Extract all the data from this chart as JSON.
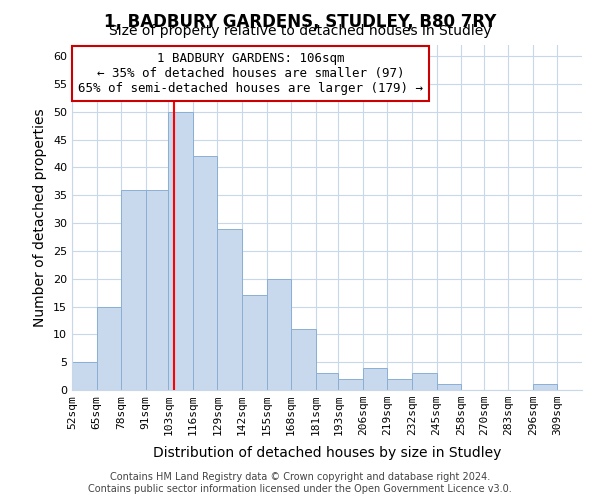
{
  "title": "1, BADBURY GARDENS, STUDLEY, B80 7RY",
  "subtitle": "Size of property relative to detached houses in Studley",
  "xlabel": "Distribution of detached houses by size in Studley",
  "ylabel": "Number of detached properties",
  "bin_labels": [
    "52sqm",
    "65sqm",
    "78sqm",
    "91sqm",
    "103sqm",
    "116sqm",
    "129sqm",
    "142sqm",
    "155sqm",
    "168sqm",
    "181sqm",
    "193sqm",
    "206sqm",
    "219sqm",
    "232sqm",
    "245sqm",
    "258sqm",
    "270sqm",
    "283sqm",
    "296sqm",
    "309sqm"
  ],
  "bar_heights": [
    5,
    15,
    36,
    36,
    50,
    42,
    29,
    17,
    20,
    11,
    3,
    2,
    4,
    2,
    3,
    1,
    0,
    0,
    0,
    1,
    0
  ],
  "bar_color": "#c9d9ed",
  "bar_edge_color": "#8bafd4",
  "red_line_x": 106,
  "bin_edges": [
    52,
    65,
    78,
    91,
    103,
    116,
    129,
    142,
    155,
    168,
    181,
    193,
    206,
    219,
    232,
    245,
    258,
    270,
    283,
    296,
    309,
    322
  ],
  "annotation_title": "1 BADBURY GARDENS: 106sqm",
  "annotation_line1": "← 35% of detached houses are smaller (97)",
  "annotation_line2": "65% of semi-detached houses are larger (179) →",
  "annotation_box_color": "#ffffff",
  "annotation_box_edge": "#cc0000",
  "footer1": "Contains HM Land Registry data © Crown copyright and database right 2024.",
  "footer2": "Contains public sector information licensed under the Open Government Licence v3.0.",
  "ylim": [
    0,
    62
  ],
  "yticks": [
    0,
    5,
    10,
    15,
    20,
    25,
    30,
    35,
    40,
    45,
    50,
    55,
    60
  ],
  "bg_color": "#ffffff",
  "plot_bg_color": "#ffffff",
  "grid_color": "#c8d8e8",
  "title_fontsize": 12,
  "subtitle_fontsize": 10,
  "axis_label_fontsize": 10,
  "tick_fontsize": 8,
  "annotation_fontsize": 9,
  "footer_fontsize": 7
}
